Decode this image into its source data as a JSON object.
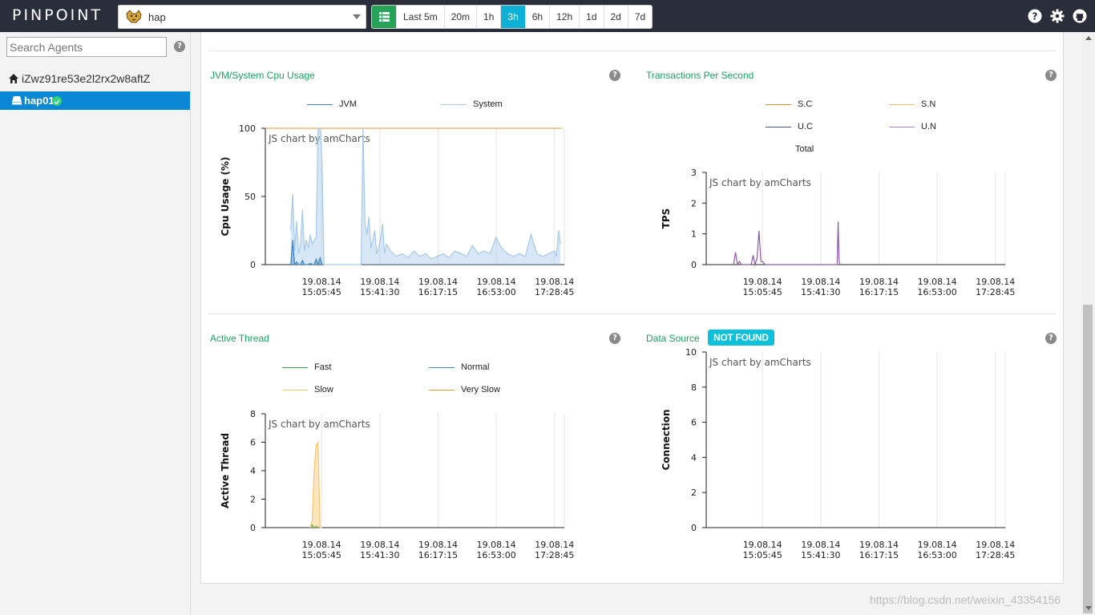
{
  "header": {
    "logo": "PINPOINT",
    "app_name": "hap",
    "app_icon": "tomcat-icon",
    "ranges": [
      "Last 5m",
      "20m",
      "1h",
      "3h",
      "6h",
      "12h",
      "1d",
      "2d",
      "7d"
    ],
    "active_range": "3h",
    "icons": [
      "help-icon",
      "gear-icon",
      "github-icon"
    ]
  },
  "sidebar": {
    "search_placeholder": "Search Agents",
    "group_name": "iZwz91re53e2l2rx2w8aftZ",
    "agent_name": "hap01",
    "agent_status": "ok"
  },
  "panels": {
    "cpu": {
      "title": "JVM/System Cpu Usage",
      "legend": [
        "JVM",
        "System"
      ],
      "watermark": "JS chart by amCharts"
    },
    "tps": {
      "title": "Transactions Per Second",
      "legend": [
        "S.C",
        "S.N",
        "U.C",
        "U.N",
        "Total"
      ],
      "watermark": "JS chart by amCharts"
    },
    "thread": {
      "title": "Active Thread",
      "legend": [
        "Fast",
        "Normal",
        "Slow",
        "Very Slow"
      ],
      "watermark": "JS chart by amCharts"
    },
    "datasource": {
      "title": "Data Source",
      "badge": "NOT FOUND",
      "watermark": "JS chart by amCharts"
    }
  },
  "chart_data": [
    {
      "type": "area",
      "ylabel": "Cpu Usage (%)",
      "ylim": [
        0,
        100
      ],
      "yticks": [
        0,
        50,
        100
      ],
      "x_ticks": [
        [
          "19.08.14",
          "15:05:45"
        ],
        [
          "19.08.14",
          "15:41:30"
        ],
        [
          "19.08.14",
          "16:17:15"
        ],
        [
          "19.08.14",
          "16:53:00"
        ],
        [
          "19.08.14",
          "17:28:45"
        ]
      ],
      "reference_line": 100,
      "colors": {
        "JVM": "#3c87c6",
        "System": "#a7c9e8",
        "reference": "#f4933a"
      },
      "series": [
        {
          "name": "JVM",
          "x": [
            14.78,
            14.8,
            14.82,
            14.84,
            14.86,
            14.88,
            14.9,
            14.92,
            14.94,
            14.96,
            14.98,
            15.0,
            15.02,
            15.04,
            15.06,
            15.08,
            15.1
          ],
          "values": [
            0,
            18,
            0,
            2,
            0,
            0,
            3,
            0,
            0,
            0,
            1,
            0,
            0,
            4,
            0,
            5,
            0
          ]
        },
        {
          "name": "System",
          "x": [
            14.78,
            14.8,
            14.82,
            14.84,
            14.86,
            14.88,
            14.9,
            14.92,
            14.94,
            14.96,
            14.98,
            15.0,
            15.02,
            15.04,
            15.06,
            15.08,
            15.1,
            15.12,
            15.14,
            15.5,
            15.52,
            15.54,
            15.56,
            15.58,
            15.6,
            15.62,
            15.64,
            15.66,
            15.68,
            15.7,
            15.72,
            15.74,
            15.76,
            15.8,
            15.86,
            15.92,
            15.98,
            16.04,
            16.1,
            16.16,
            16.22,
            16.28,
            16.34,
            16.4,
            16.46,
            16.52,
            16.58,
            16.64,
            16.7,
            16.76,
            16.82,
            16.88,
            16.94,
            17.0,
            17.06,
            17.12,
            17.18,
            17.24,
            17.3,
            17.36,
            17.42,
            17.48,
            17.5,
            17.52,
            17.54
          ],
          "values": [
            25,
            52,
            10,
            32,
            8,
            15,
            40,
            10,
            18,
            12,
            22,
            15,
            18,
            20,
            100,
            100,
            75,
            0,
            0,
            0,
            100,
            30,
            22,
            35,
            12,
            18,
            25,
            8,
            12,
            20,
            30,
            8,
            15,
            10,
            6,
            8,
            5,
            10,
            6,
            8,
            4,
            6,
            8,
            5,
            10,
            8,
            6,
            14,
            8,
            10,
            8,
            20,
            12,
            8,
            6,
            8,
            6,
            22,
            8,
            6,
            8,
            10,
            6,
            25,
            15
          ]
        }
      ]
    },
    {
      "type": "line",
      "ylabel": "TPS",
      "ylim": [
        0,
        3
      ],
      "yticks": [
        0,
        1,
        2,
        3
      ],
      "x_ticks": [
        [
          "19.08.14",
          "15:05:45"
        ],
        [
          "19.08.14",
          "15:41:30"
        ],
        [
          "19.08.14",
          "16:17:15"
        ],
        [
          "19.08.14",
          "16:53:00"
        ],
        [
          "19.08.14",
          "17:28:45"
        ]
      ],
      "colors": {
        "S.C": "#e08b2a",
        "S.N": "#f2bd6b",
        "U.C": "#4a5a9e",
        "U.N": "#a487d6",
        "Total": "#8a5aa8"
      },
      "series": [
        {
          "name": "Total",
          "x": [
            14.8,
            14.82,
            14.84,
            14.86,
            14.88,
            14.9,
            14.92,
            14.94,
            14.96,
            14.98,
            15.0,
            15.02,
            15.04,
            15.06,
            15.08,
            15.1,
            15.12,
            15.86,
            15.87,
            15.88,
            15.89
          ],
          "values": [
            0,
            0.4,
            0,
            0.1,
            0,
            0,
            0,
            0,
            0,
            0,
            0.3,
            0,
            0.2,
            1.1,
            0.1,
            0.1,
            0,
            0,
            1.4,
            0.1,
            0
          ]
        }
      ]
    },
    {
      "type": "area",
      "ylabel": "Active Thread",
      "ylim": [
        0,
        8
      ],
      "yticks": [
        0,
        2,
        4,
        6,
        8
      ],
      "x_ticks": [
        [
          "19.08.14",
          "15:05:45"
        ],
        [
          "19.08.14",
          "15:41:30"
        ],
        [
          "19.08.14",
          "16:17:15"
        ],
        [
          "19.08.14",
          "16:53:00"
        ],
        [
          "19.08.14",
          "17:28:45"
        ]
      ],
      "colors": {
        "Fast": "#2aa852",
        "Normal": "#3c8ad6",
        "Slow": "#f7c66b",
        "Very Slow": "#f09a31"
      },
      "series": [
        {
          "name": "Slow",
          "x": [
            14.98,
            15.0,
            15.02,
            15.04,
            15.06,
            15.08,
            15.1
          ],
          "values": [
            0,
            0.5,
            4,
            5.8,
            6,
            0,
            0
          ]
        },
        {
          "name": "Fast",
          "x": [
            14.98,
            15.0,
            15.02,
            15.04,
            15.06
          ],
          "values": [
            0,
            0.2,
            0,
            0.1,
            0
          ]
        }
      ]
    },
    {
      "type": "line",
      "ylabel": "Connection",
      "ylim": [
        0,
        10
      ],
      "yticks": [
        0,
        2,
        4,
        6,
        8,
        10
      ],
      "x_ticks": [
        [
          "19.08.14",
          "15:05:45"
        ],
        [
          "19.08.14",
          "15:41:30"
        ],
        [
          "19.08.14",
          "16:17:15"
        ],
        [
          "19.08.14",
          "16:53:00"
        ],
        [
          "19.08.14",
          "17:28:45"
        ]
      ],
      "series": []
    }
  ],
  "watermark": "https://blog.csdn.net/weixin_43354156"
}
